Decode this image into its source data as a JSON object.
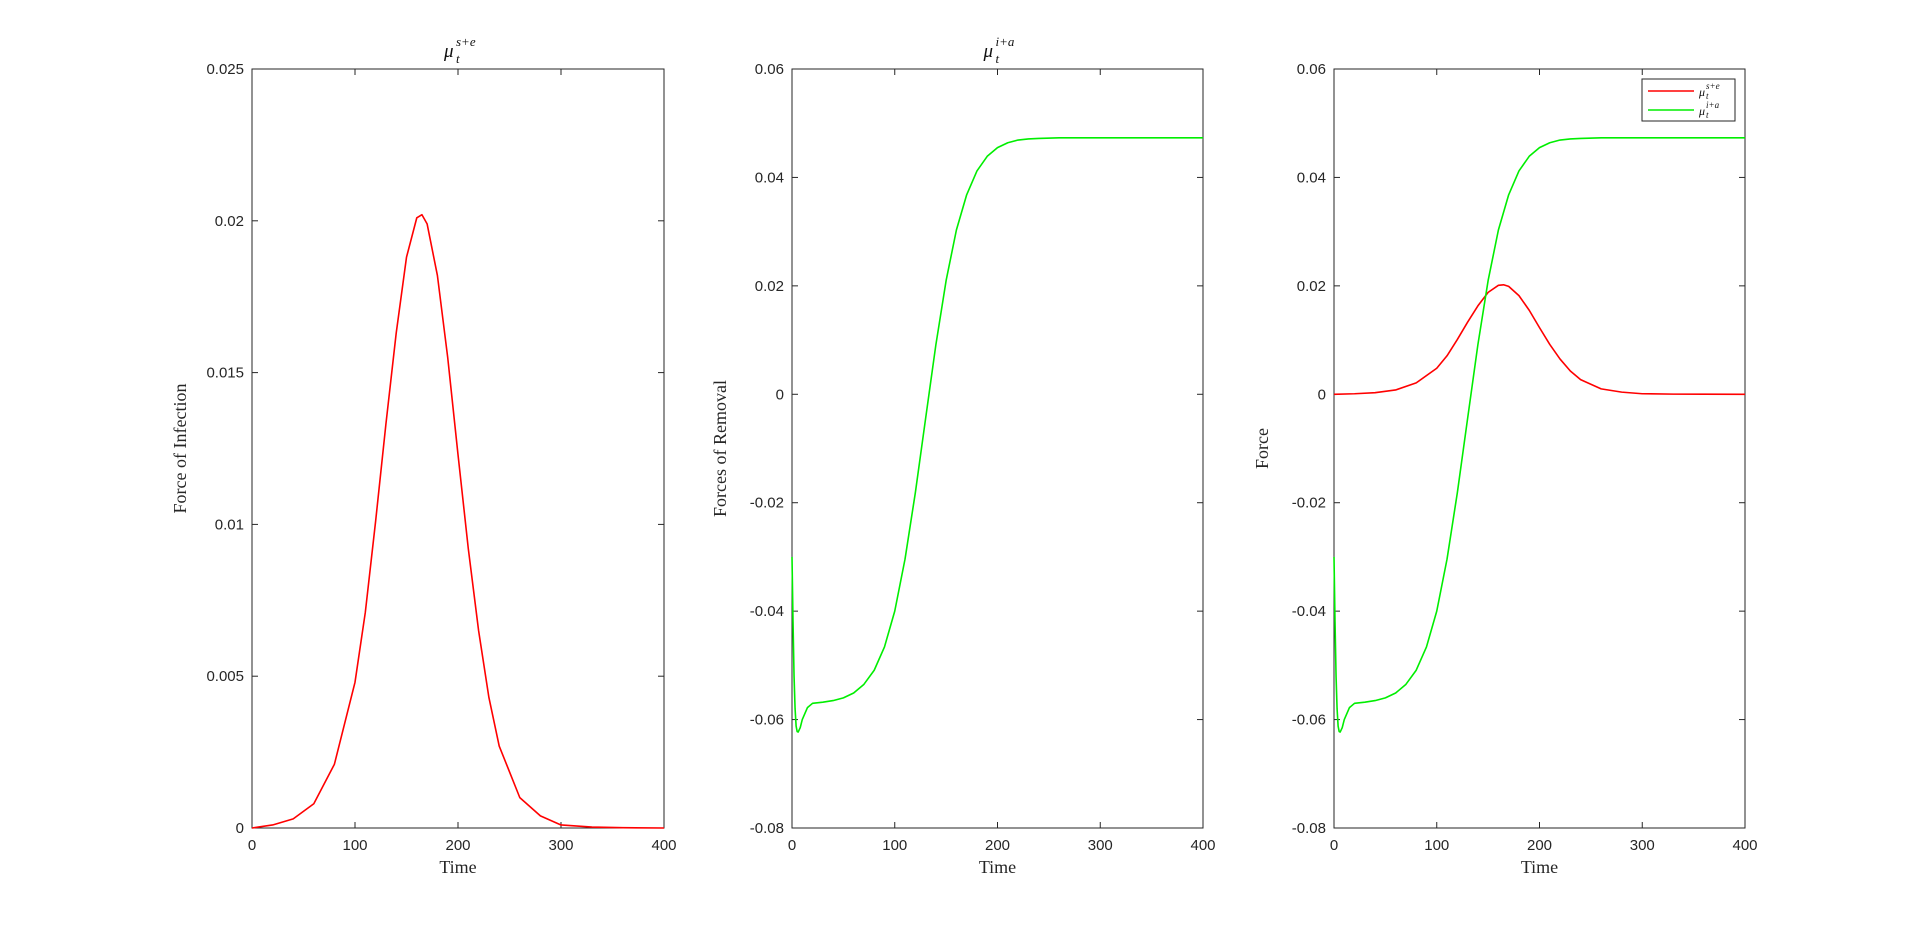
{
  "chart_data": [
    {
      "type": "line",
      "title": {
        "base": "μ",
        "sub": "t",
        "sup": "s+e"
      },
      "xlabel": "Time",
      "ylabel": "Force of Infection",
      "xlim": [
        0,
        400
      ],
      "ylim": [
        0,
        0.025
      ],
      "xticks": [
        0,
        100,
        200,
        300,
        400
      ],
      "xtick_labels": [
        "0",
        "100",
        "200",
        "300",
        "400"
      ],
      "yticks": [
        0,
        0.005,
        0.01,
        0.015,
        0.02,
        0.025
      ],
      "ytick_labels": [
        "0",
        "0.005",
        "0.01",
        "0.015",
        "0.02",
        "0.025"
      ],
      "grid": false,
      "series": [
        {
          "color": "#ff0000",
          "x": [
            0,
            20,
            40,
            60,
            80,
            100,
            110,
            120,
            130,
            140,
            150,
            160,
            165,
            170,
            180,
            190,
            200,
            210,
            220,
            230,
            240,
            260,
            280,
            300,
            330,
            360,
            400
          ],
          "y": [
            0,
            0.0001,
            0.0003,
            0.0008,
            0.0021,
            0.0048,
            0.0071,
            0.0101,
            0.0133,
            0.0163,
            0.0188,
            0.0201,
            0.0202,
            0.0199,
            0.0182,
            0.0155,
            0.0123,
            0.0092,
            0.0065,
            0.0043,
            0.0027,
            0.001,
            0.0004,
            0.0001,
            3e-05,
            1e-05,
            0
          ]
        }
      ]
    },
    {
      "type": "line",
      "title": {
        "base": "μ",
        "sub": "t",
        "sup": "i+a"
      },
      "xlabel": "Time",
      "ylabel": "Forces of Removal",
      "xlim": [
        0,
        400
      ],
      "ylim": [
        -0.08,
        0.06
      ],
      "xticks": [
        0,
        100,
        200,
        300,
        400
      ],
      "xtick_labels": [
        "0",
        "100",
        "200",
        "300",
        "400"
      ],
      "yticks": [
        -0.08,
        -0.06,
        -0.04,
        -0.02,
        0,
        0.02,
        0.04,
        0.06
      ],
      "ytick_labels": [
        "-0.08",
        "-0.06",
        "-0.04",
        "-0.02",
        "0",
        "0.02",
        "0.04",
        "0.06"
      ],
      "grid": false,
      "series": [
        {
          "color": "#00ee00",
          "x": [
            0,
            1,
            2,
            3,
            4,
            5,
            6,
            8,
            10,
            15,
            20,
            30,
            40,
            50,
            60,
            70,
            80,
            90,
            100,
            110,
            120,
            130,
            140,
            150,
            160,
            170,
            180,
            190,
            200,
            210,
            220,
            230,
            240,
            260,
            280,
            300,
            350,
            400
          ],
          "y": [
            -0.03,
            -0.042,
            -0.052,
            -0.058,
            -0.0612,
            -0.0622,
            -0.0623,
            -0.0615,
            -0.06,
            -0.0578,
            -0.057,
            -0.0568,
            -0.0565,
            -0.056,
            -0.0551,
            -0.0535,
            -0.0509,
            -0.0466,
            -0.04,
            -0.0304,
            -0.0182,
            -0.0045,
            0.0091,
            0.021,
            0.0303,
            0.0368,
            0.0412,
            0.0439,
            0.0455,
            0.0464,
            0.0469,
            0.0471,
            0.0472,
            0.0473,
            0.0473,
            0.0473,
            0.0473,
            0.0473
          ]
        }
      ]
    },
    {
      "type": "line",
      "title": "",
      "xlabel": "Time",
      "ylabel": "Force",
      "xlim": [
        0,
        400
      ],
      "ylim": [
        -0.08,
        0.06
      ],
      "xticks": [
        0,
        100,
        200,
        300,
        400
      ],
      "xtick_labels": [
        "0",
        "100",
        "200",
        "300",
        "400"
      ],
      "yticks": [
        -0.08,
        -0.06,
        -0.04,
        -0.02,
        0,
        0.02,
        0.04,
        0.06
      ],
      "ytick_labels": [
        "-0.08",
        "-0.06",
        "-0.04",
        "-0.02",
        "0",
        "0.02",
        "0.04",
        "0.06"
      ],
      "grid": false,
      "legend_position": "top-right",
      "series": [
        {
          "name": {
            "base": "μ",
            "sub": "t",
            "sup": "s+e"
          },
          "color": "#ff0000",
          "x": [
            0,
            20,
            40,
            60,
            80,
            100,
            110,
            120,
            130,
            140,
            150,
            160,
            165,
            170,
            180,
            190,
            200,
            210,
            220,
            230,
            240,
            260,
            280,
            300,
            330,
            360,
            400
          ],
          "y": [
            0,
            0.0001,
            0.0003,
            0.0008,
            0.0021,
            0.0048,
            0.0071,
            0.0101,
            0.0133,
            0.0163,
            0.0188,
            0.0201,
            0.0202,
            0.0199,
            0.0182,
            0.0155,
            0.0123,
            0.0092,
            0.0065,
            0.0043,
            0.0027,
            0.001,
            0.0004,
            0.0001,
            3e-05,
            1e-05,
            0
          ]
        },
        {
          "name": {
            "base": "μ",
            "sub": "t",
            "sup": "i+a"
          },
          "color": "#00ee00",
          "x": [
            0,
            1,
            2,
            3,
            4,
            5,
            6,
            8,
            10,
            15,
            20,
            30,
            40,
            50,
            60,
            70,
            80,
            90,
            100,
            110,
            120,
            130,
            140,
            150,
            160,
            170,
            180,
            190,
            200,
            210,
            220,
            230,
            240,
            260,
            280,
            300,
            350,
            400
          ],
          "y": [
            -0.03,
            -0.042,
            -0.052,
            -0.058,
            -0.0612,
            -0.0622,
            -0.0623,
            -0.0615,
            -0.06,
            -0.0578,
            -0.057,
            -0.0568,
            -0.0565,
            -0.056,
            -0.0551,
            -0.0535,
            -0.0509,
            -0.0466,
            -0.04,
            -0.0304,
            -0.0182,
            -0.0045,
            0.0091,
            0.021,
            0.0303,
            0.0368,
            0.0412,
            0.0439,
            0.0455,
            0.0464,
            0.0469,
            0.0471,
            0.0472,
            0.0473,
            0.0473,
            0.0473,
            0.0473,
            0.0473
          ]
        }
      ]
    }
  ]
}
